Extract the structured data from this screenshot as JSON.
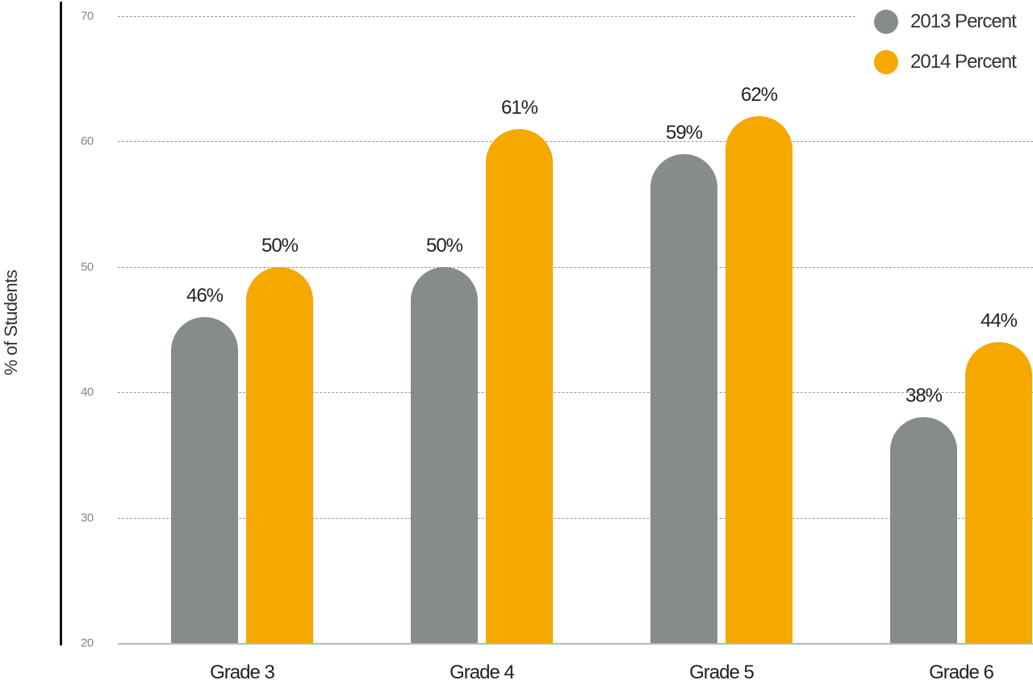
{
  "chart_data": {
    "type": "bar",
    "title": "",
    "xlabel": "",
    "ylabel": "% of Students",
    "ylim": [
      20,
      70
    ],
    "yticks": [
      70,
      60,
      50,
      40,
      30,
      20
    ],
    "grid": true,
    "legend_position": "top-right",
    "categories": [
      "Grade 3",
      "Grade 4",
      "Grade 5",
      "Grade 6"
    ],
    "series": [
      {
        "name": "2013 Percent",
        "color": "#888b8b",
        "values": [
          46,
          50,
          59,
          38
        ],
        "labels": [
          "46%",
          "50%",
          "59%",
          "38%"
        ]
      },
      {
        "name": "2014 Percent",
        "color": "#f5a800",
        "values": [
          50,
          61,
          62,
          44
        ],
        "labels": [
          "50%",
          "61%",
          "62%",
          "44%"
        ]
      }
    ]
  },
  "axis": {
    "ylabel": "% of Students",
    "ticks": [
      "70",
      "60",
      "50",
      "40",
      "30",
      "20"
    ]
  },
  "legend": {
    "items": [
      {
        "label": "2013 Percent",
        "color": "#888b8b"
      },
      {
        "label": "2014 Percent",
        "color": "#f5a800"
      }
    ]
  },
  "categories": [
    "Grade 3",
    "Grade 4",
    "Grade 5",
    "Grade 6"
  ]
}
